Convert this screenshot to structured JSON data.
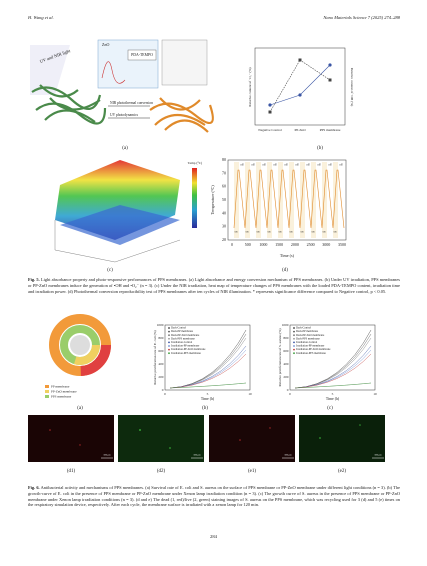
{
  "header": {
    "author": "H. Wang et al.",
    "journal": "Nano Materials Science 7 (2025) 274–288"
  },
  "figure5": {
    "panels": [
      "(a)",
      "(b)",
      "(c)",
      "(d)"
    ],
    "panel_a": {
      "light": "UV and NIR light",
      "zno": "ZnO",
      "pda": "PDA-TEMPO",
      "nir": "NIR photothermal conversion",
      "uv": "UV photodynamics"
    },
    "panel_b": {
      "y_label": "Relative content of ·O₂⁻ (%)",
      "y2_label": "Relative content of ·OH (%)",
      "categories": [
        "Negative Control",
        "PP-ZnO",
        "PPS membrane"
      ]
    },
    "panel_c": {
      "colorbar": "Temp (°C)"
    },
    "panel_d": {
      "y_label": "Temperature (°C)",
      "x_label": "Time (s)",
      "yticks": [
        "20",
        "30",
        "40",
        "50",
        "60",
        "70",
        "80"
      ],
      "xticks": [
        "0",
        "500",
        "1000",
        "1500",
        "2000",
        "2500",
        "3000",
        "3500"
      ],
      "on": "on",
      "off": "off"
    },
    "caption_label": "Fig. 5.",
    "caption": "Light absorbance property and photo-responsive performances of PPS membranes. (a) Light absorbance and energy conversion mechanism of PPS membranes. (b) Under UV irradiation, PPS membranes or PP-ZnO membranes induce the generation of •OH and •O₂⁻ (n = 3). (c) Under the NIR irradiation, heat map of temperature changes of PPS membranes with the loaded PDA-TEMPO content, irradiation time and irradiation power. (d) Photothermal conversion reproducibility test of PPS membranes after ten cycles of NIR illumination. * represents significance difference compared to Negative control, p < 0.05."
  },
  "figure6": {
    "panels": [
      "(a)",
      "(b)",
      "(c)",
      "(d1)",
      "(d2)",
      "(e1)",
      "(e2)"
    ],
    "panel_a": {
      "legend": [
        "PP membrane",
        "PP-ZnO membrane",
        "PPS membrane"
      ]
    },
    "growth": {
      "x_label": "Time (h)",
      "y_label_b": "Relative proliferation rate of E. coli (%)",
      "y_label_c": "Relative proliferation rate of S. aureus (%)",
      "yticks": [
        "0",
        "200",
        "400",
        "600",
        "800",
        "1000"
      ],
      "xticks": [
        "0",
        "5",
        "10"
      ],
      "legend": [
        "Dark-Control",
        "Dark-PP membrane",
        "Dark-PP-ZnO membrane",
        "Dark-PPS membrane",
        "Irradiation-Control",
        "Irradiation-PP membrane",
        "Irradiation-PP-ZnO membrane",
        "Irradiation-PPS membrane"
      ]
    },
    "scale_bar": "100 μm",
    "caption_label": "Fig. 6.",
    "caption": "Antibacterial activity and mechanisms of PPS membranes. (a) Survival rate of E. coli and S. aureus on the surface of PPS membrane or PP-ZnO membrane under different light conditions (n = 3). (b) The growth-curve of E. coli in the presence of PPS membrane or PP-ZnO membrane under Xenon lamp irradiation condition (n = 3). (c) The growth curve of S. aureus in the presence of PPS membrane or PP-ZnO membrane under Xenon lamp irradiation conditions (n = 3). (d and e) The dead (1, red)/live (2, green) staining images of S. aureus on the PPS membrane, which was recycling used for 3 (d) and 5 (e) times on the respiratory simulation device, respectively. After each cycle, the membrane surface is irradiated with a xenon lamp for 120 min."
  },
  "footer": {
    "page": "284"
  }
}
